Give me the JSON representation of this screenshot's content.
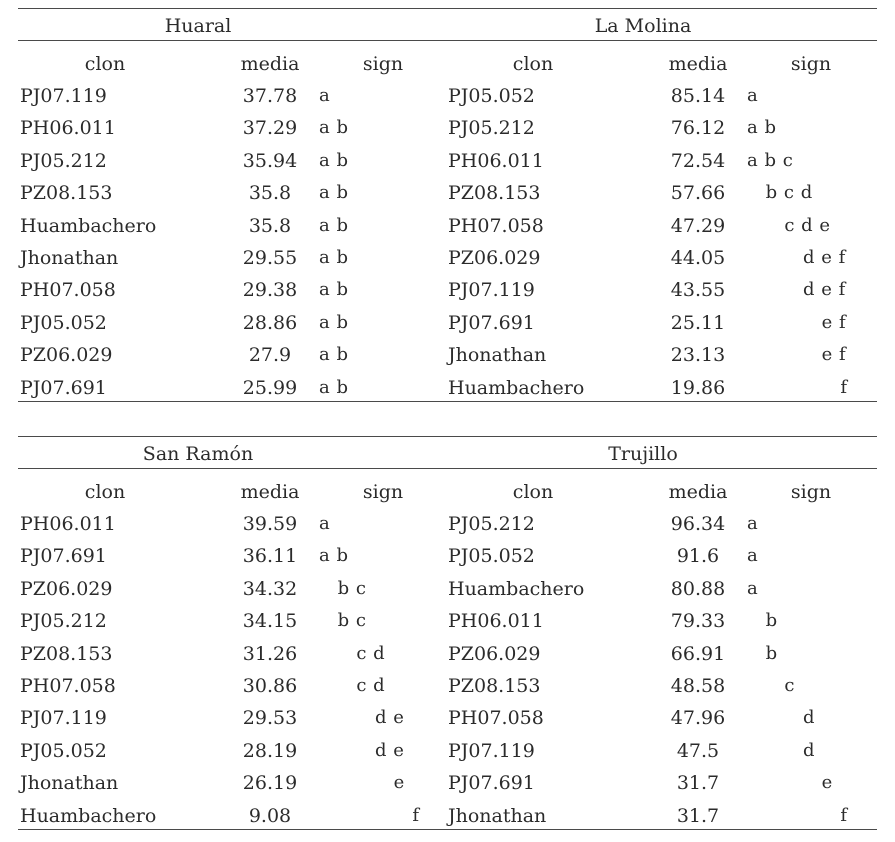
{
  "columns": {
    "clon": "clon",
    "media": "media",
    "sign": "sign"
  },
  "blocks": [
    [
      {
        "region": "Huaral",
        "rows": [
          {
            "clon": "PJ07.119",
            "media": "37.78",
            "sign": "a"
          },
          {
            "clon": "PH06.011",
            "media": "37.29",
            "sign": "a b"
          },
          {
            "clon": "PJ05.212",
            "media": "35.94",
            "sign": "a b"
          },
          {
            "clon": "PZ08.153",
            "media": "35.8",
            "sign": "a b"
          },
          {
            "clon": "Huambachero",
            "media": "35.8",
            "sign": "a b"
          },
          {
            "clon": "Jhonathan",
            "media": "29.55",
            "sign": "a b"
          },
          {
            "clon": "PH07.058",
            "media": "29.38",
            "sign": "a b"
          },
          {
            "clon": "PJ05.052",
            "media": "28.86",
            "sign": "a b"
          },
          {
            "clon": "PZ06.029",
            "media": "27.9",
            "sign": "a b"
          },
          {
            "clon": "PJ07.691",
            "media": "25.99",
            "sign": "a b"
          }
        ]
      },
      {
        "region": "La Molina",
        "rows": [
          {
            "clon": "PJ05.052",
            "media": "85.14",
            "sign": "a"
          },
          {
            "clon": "PJ05.212",
            "media": "76.12",
            "sign": "a b"
          },
          {
            "clon": "PH06.011",
            "media": "72.54",
            "sign": "a b c"
          },
          {
            "clon": "PZ08.153",
            "media": "57.66",
            "sign": "   b c d"
          },
          {
            "clon": "PH07.058",
            "media": "47.29",
            "sign": "      c d e"
          },
          {
            "clon": "PZ06.029",
            "media": "44.05",
            "sign": "         d e f"
          },
          {
            "clon": "PJ07.119",
            "media": "43.55",
            "sign": "         d e f"
          },
          {
            "clon": "PJ07.691",
            "media": "25.11",
            "sign": "            e f"
          },
          {
            "clon": "Jhonathan",
            "media": "23.13",
            "sign": "            e f"
          },
          {
            "clon": "Huambachero",
            "media": "19.86",
            "sign": "               f"
          }
        ]
      }
    ],
    [
      {
        "region": "San Ramón",
        "rows": [
          {
            "clon": "PH06.011",
            "media": "39.59",
            "sign": "a"
          },
          {
            "clon": "PJ07.691",
            "media": "36.11",
            "sign": "a b"
          },
          {
            "clon": "PZ06.029",
            "media": "34.32",
            "sign": "   b c"
          },
          {
            "clon": "PJ05.212",
            "media": "34.15",
            "sign": "   b c"
          },
          {
            "clon": "PZ08.153",
            "media": "31.26",
            "sign": "      c d"
          },
          {
            "clon": "PH07.058",
            "media": "30.86",
            "sign": "      c d"
          },
          {
            "clon": "PJ07.119",
            "media": "29.53",
            "sign": "         d e"
          },
          {
            "clon": "PJ05.052",
            "media": "28.19",
            "sign": "         d e"
          },
          {
            "clon": "Jhonathan",
            "media": "26.19",
            "sign": "            e"
          },
          {
            "clon": "Huambachero",
            "media": "9.08",
            "sign": "               f"
          }
        ]
      },
      {
        "region": "Trujillo",
        "rows": [
          {
            "clon": "PJ05.212",
            "media": "96.34",
            "sign": "a"
          },
          {
            "clon": "PJ05.052",
            "media": "91.6",
            "sign": "a"
          },
          {
            "clon": "Huambachero",
            "media": "80.88",
            "sign": "a"
          },
          {
            "clon": "PH06.011",
            "media": "79.33",
            "sign": "   b"
          },
          {
            "clon": "PZ06.029",
            "media": "66.91",
            "sign": "   b"
          },
          {
            "clon": "PZ08.153",
            "media": "48.58",
            "sign": "      c"
          },
          {
            "clon": "PH07.058",
            "media": "47.96",
            "sign": "         d"
          },
          {
            "clon": "PJ07.119",
            "media": "47.5",
            "sign": "         d"
          },
          {
            "clon": "PJ07.691",
            "media": "31.7",
            "sign": "            e"
          },
          {
            "clon": "Jhonathan",
            "media": "31.7",
            "sign": "               f"
          }
        ]
      }
    ]
  ]
}
